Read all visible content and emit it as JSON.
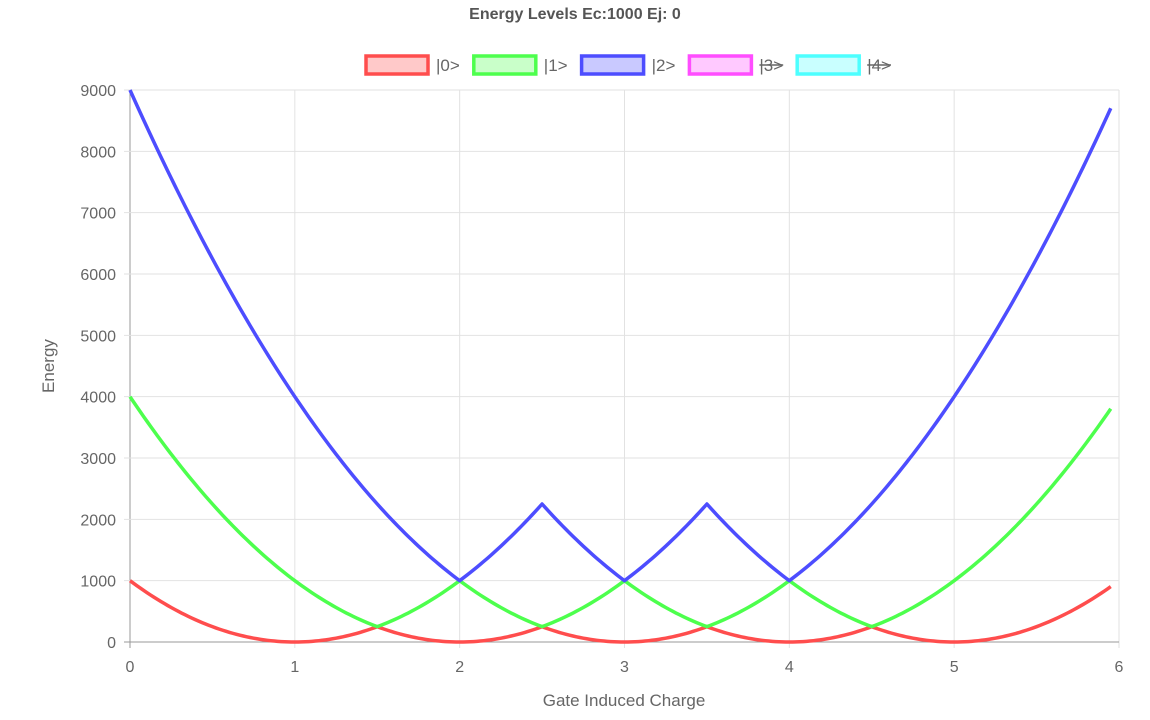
{
  "chart_data": {
    "type": "line",
    "title": "Energy Levels Ec:1000 Ej: 0",
    "xlabel": "Gate Induced Charge",
    "ylabel": "Energy",
    "xlim": [
      0,
      6
    ],
    "ylim": [
      0,
      9000
    ],
    "x_ticks": [
      "0",
      "1",
      "2",
      "3",
      "4",
      "5",
      "6"
    ],
    "y_ticks": [
      "0",
      "1000",
      "2000",
      "3000",
      "4000",
      "5000",
      "6000",
      "7000",
      "8000",
      "9000"
    ],
    "grid": true,
    "legend_position": "top",
    "series": [
      {
        "name": "|0>",
        "color": "#ff4d4d",
        "fill": "#ffc9c9",
        "hidden": false,
        "x": [
          0,
          0.5,
          1,
          1.5,
          2,
          2.5,
          3,
          3.5,
          4,
          4.5,
          5,
          5.5,
          5.95
        ],
        "y": [
          1000,
          250,
          0,
          250,
          0,
          250,
          0,
          250,
          0,
          250,
          0,
          250,
          903
        ]
      },
      {
        "name": "|1>",
        "color": "#4dff4d",
        "fill": "#c9ffc9",
        "hidden": false,
        "x": [
          0,
          0.5,
          1,
          1.5,
          2,
          2.5,
          3,
          3.5,
          4,
          4.5,
          5,
          5.5,
          5.95
        ],
        "y": [
          4000,
          2250,
          1000,
          250,
          1000,
          250,
          1000,
          250,
          1000,
          250,
          1000,
          2250,
          3803
        ]
      },
      {
        "name": "|2>",
        "color": "#4d4dff",
        "fill": "#c9c9ff",
        "hidden": false,
        "x": [
          0,
          0.5,
          1,
          1.5,
          2,
          2.5,
          3,
          3.5,
          4,
          4.5,
          5,
          5.5,
          5.95
        ],
        "y": [
          9000,
          6250,
          4000,
          2250,
          1000,
          2250,
          1000,
          2250,
          1000,
          2250,
          4000,
          6250,
          8703
        ]
      },
      {
        "name": "|3>",
        "color": "#ff4dff",
        "fill": "#ffc9ff",
        "hidden": true,
        "x": [],
        "y": []
      },
      {
        "name": "|4>",
        "color": "#4dffff",
        "fill": "#c9ffff",
        "hidden": true,
        "x": [],
        "y": []
      }
    ]
  }
}
